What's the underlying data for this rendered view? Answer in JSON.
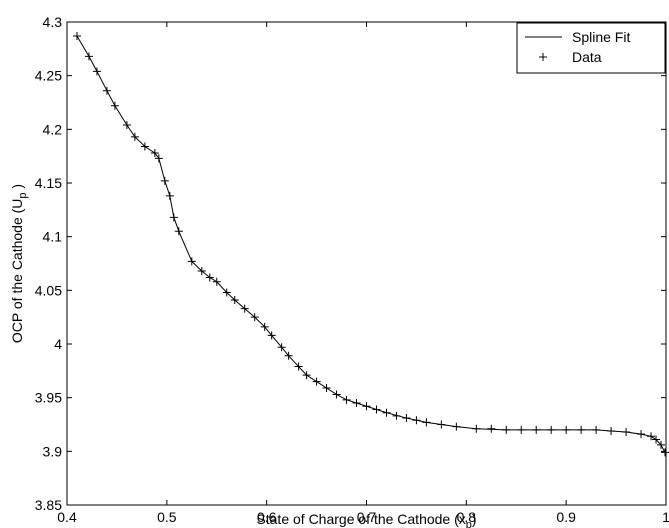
{
  "chart_data": {
    "type": "line",
    "xlabel": {
      "main": "State of Charge of the Cathode (x",
      "sub": "p",
      "end": ")"
    },
    "ylabel": {
      "main": "OCP of the Cathode (U",
      "sub": "p",
      "end": " )"
    },
    "xlim": [
      0.4,
      1
    ],
    "xticks": [
      0.4,
      0.5,
      0.6,
      0.7,
      0.8,
      0.9,
      {
        "value": 1,
        "label": "1"
      }
    ],
    "ylim": [
      3.85,
      4.3
    ],
    "yticks": [
      3.85,
      3.9,
      3.95,
      {
        "value": 4,
        "label": "4"
      },
      4.05,
      4.1,
      4.15,
      4.2,
      4.25,
      4.3
    ],
    "legend": "top-right",
    "series": [
      {
        "name": "Spline Fit",
        "color": "#000000",
        "marker": "none",
        "x": [
          0.41,
          0.422,
          0.43,
          0.44,
          0.448,
          0.46,
          0.468,
          0.478,
          0.488,
          0.492,
          0.498,
          0.503,
          0.507,
          0.512,
          0.525,
          0.535,
          0.543,
          0.55,
          0.56,
          0.568,
          0.578,
          0.588,
          0.598,
          0.605,
          0.615,
          0.622,
          0.632,
          0.64,
          0.65,
          0.66,
          0.67,
          0.68,
          0.69,
          0.7,
          0.72,
          0.74,
          0.76,
          0.79,
          0.81,
          0.84,
          0.87,
          0.9,
          0.93,
          0.945,
          0.96,
          0.975,
          0.985,
          0.99,
          0.995,
          0.999
        ],
        "values": [
          4.287,
          4.268,
          4.254,
          4.236,
          4.222,
          4.204,
          4.193,
          4.184,
          4.178,
          4.173,
          4.152,
          4.138,
          4.118,
          4.105,
          4.077,
          4.068,
          4.062,
          4.058,
          4.048,
          4.041,
          4.033,
          4.025,
          4.016,
          4.008,
          3.997,
          3.989,
          3.979,
          3.971,
          3.965,
          3.959,
          3.953,
          3.948,
          3.945,
          3.942,
          3.936,
          3.931,
          3.927,
          3.923,
          3.921,
          3.92,
          3.92,
          3.92,
          3.92,
          3.919,
          3.918,
          3.916,
          3.914,
          3.911,
          3.906,
          3.899
        ]
      },
      {
        "name": "Data",
        "color": "#000000",
        "marker": "+",
        "x": [
          0.41,
          0.422,
          0.43,
          0.44,
          0.448,
          0.46,
          0.468,
          0.478,
          0.488,
          0.492,
          0.498,
          0.503,
          0.507,
          0.512,
          0.525,
          0.535,
          0.543,
          0.55,
          0.56,
          0.568,
          0.578,
          0.588,
          0.598,
          0.605,
          0.615,
          0.622,
          0.632,
          0.64,
          0.65,
          0.66,
          0.67,
          0.68,
          0.69,
          0.7,
          0.71,
          0.72,
          0.73,
          0.74,
          0.75,
          0.76,
          0.775,
          0.79,
          0.81,
          0.825,
          0.84,
          0.855,
          0.87,
          0.885,
          0.9,
          0.915,
          0.93,
          0.945,
          0.96,
          0.975,
          0.985,
          0.99,
          0.995,
          0.999
        ],
        "values": [
          4.287,
          4.268,
          4.254,
          4.236,
          4.222,
          4.204,
          4.193,
          4.184,
          4.178,
          4.173,
          4.152,
          4.138,
          4.118,
          4.105,
          4.077,
          4.068,
          4.062,
          4.058,
          4.048,
          4.041,
          4.033,
          4.025,
          4.016,
          4.008,
          3.997,
          3.989,
          3.979,
          3.971,
          3.965,
          3.959,
          3.953,
          3.948,
          3.945,
          3.942,
          3.939,
          3.936,
          3.933,
          3.931,
          3.929,
          3.927,
          3.925,
          3.923,
          3.921,
          3.921,
          3.92,
          3.92,
          3.92,
          3.92,
          3.92,
          3.92,
          3.92,
          3.919,
          3.918,
          3.916,
          3.914,
          3.911,
          3.906,
          3.899
        ]
      }
    ]
  }
}
